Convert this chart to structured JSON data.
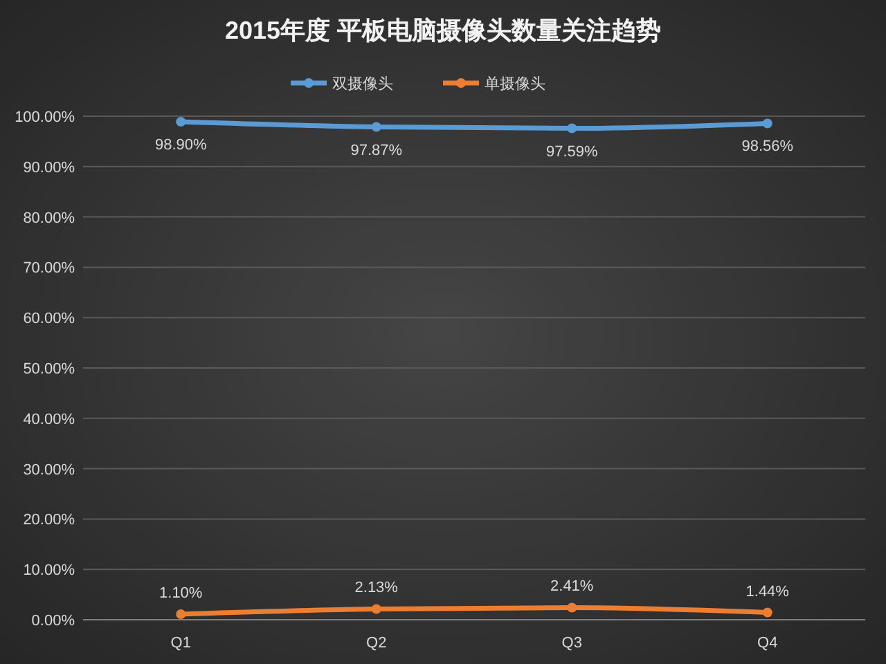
{
  "chart_data": {
    "type": "line",
    "title": "2015年度 平板电脑摄像头数量关注趋势",
    "categories": [
      "Q1",
      "Q2",
      "Q3",
      "Q4"
    ],
    "series": [
      {
        "name": "双摄像头",
        "color": "#5b9bd5",
        "values": [
          98.9,
          97.87,
          97.59,
          98.56
        ],
        "value_labels": [
          "98.90%",
          "97.87%",
          "97.59%",
          "98.56%"
        ]
      },
      {
        "name": "单摄像头",
        "color": "#ed7d31",
        "values": [
          1.1,
          2.13,
          2.41,
          1.44
        ],
        "value_labels": [
          "1.10%",
          "2.13%",
          "2.41%",
          "1.44%"
        ]
      }
    ],
    "ylim": [
      0,
      100
    ],
    "yticks": [
      {
        "value": 0,
        "label": "0.00%"
      },
      {
        "value": 10,
        "label": "10.00%"
      },
      {
        "value": 20,
        "label": "20.00%"
      },
      {
        "value": 30,
        "label": "30.00%"
      },
      {
        "value": 40,
        "label": "40.00%"
      },
      {
        "value": 50,
        "label": "50.00%"
      },
      {
        "value": 60,
        "label": "60.00%"
      },
      {
        "value": 70,
        "label": "70.00%"
      },
      {
        "value": 80,
        "label": "80.00%"
      },
      {
        "value": 90,
        "label": "90.00%"
      },
      {
        "value": 100,
        "label": "100.00%"
      }
    ],
    "grid": "y",
    "legend": "top",
    "marker": "circle",
    "line_style": "solid"
  }
}
